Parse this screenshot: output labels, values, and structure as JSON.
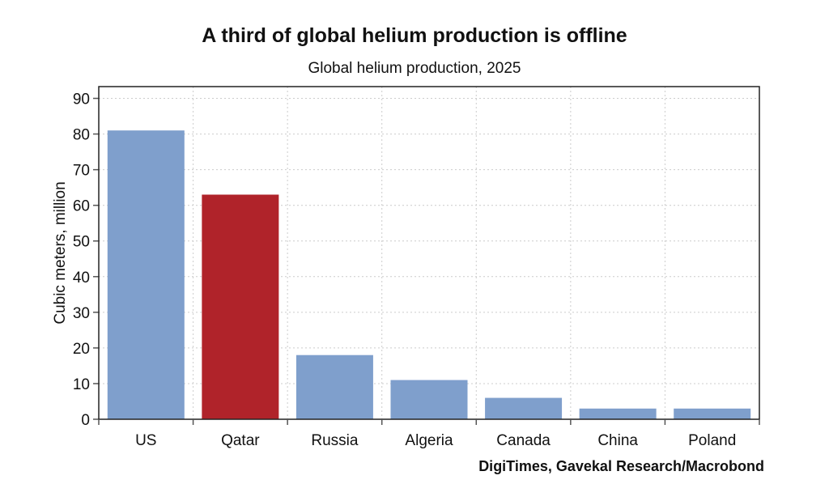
{
  "chart_data": {
    "type": "bar",
    "title": "A third of global helium production is offline",
    "subtitle": "Global helium production, 2025",
    "xlabel": "",
    "ylabel": "Cubic meters, million",
    "categories": [
      "US",
      "Qatar",
      "Russia",
      "Algeria",
      "Canada",
      "China",
      "Poland"
    ],
    "values": [
      81,
      63,
      18,
      11,
      6,
      3,
      3
    ],
    "colors": [
      "#7f9fcc",
      "#b0232a",
      "#7f9fcc",
      "#7f9fcc",
      "#7f9fcc",
      "#7f9fcc",
      "#7f9fcc"
    ],
    "yticks": [
      0,
      10,
      20,
      30,
      40,
      50,
      60,
      70,
      80,
      90
    ],
    "ylim": [
      0,
      93.3
    ],
    "grid": true,
    "source": "DigiTimes, Gavekal Research/Macrobond"
  }
}
